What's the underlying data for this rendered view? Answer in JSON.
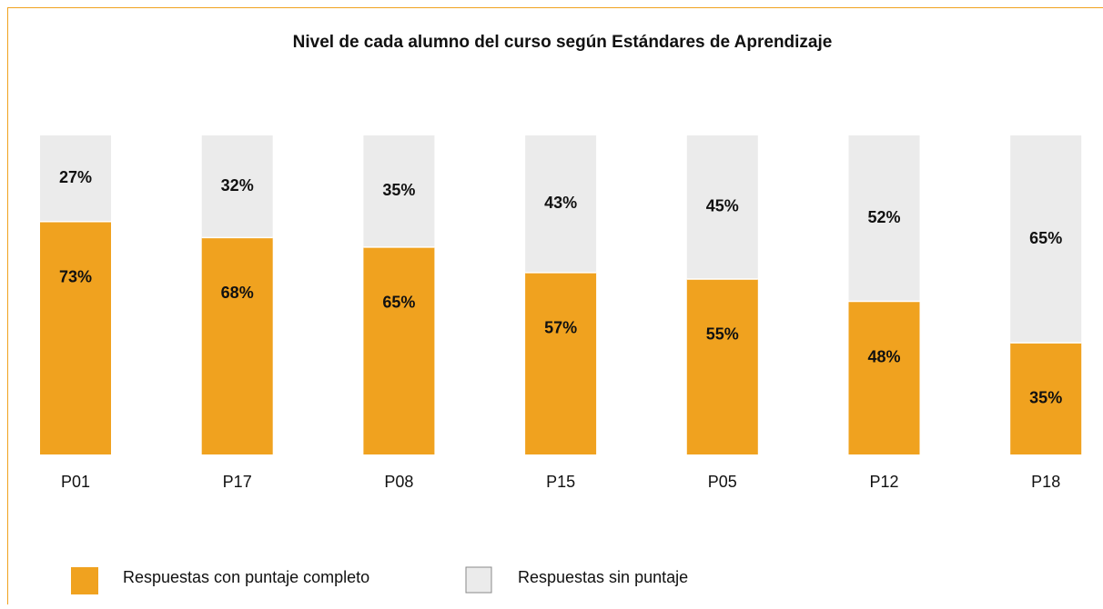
{
  "chart_data": {
    "type": "stacked_bar",
    "title": "Nivel de cada alumno del curso según Estándares de Aprendizaje",
    "categories": [
      "P01",
      "P17",
      "P08",
      "P15",
      "P05",
      "P12",
      "P18"
    ],
    "series": [
      {
        "name": "Respuestas con puntaje completo",
        "color": "#f0a21f",
        "values": [
          73,
          68,
          65,
          57,
          55,
          48,
          35
        ],
        "value_labels": [
          "73%",
          "68%",
          "65%",
          "57%",
          "55%",
          "48%",
          "35%"
        ]
      },
      {
        "name": "Respuestas sin puntaje",
        "color": "#ebebeb",
        "values": [
          27,
          32,
          35,
          43,
          45,
          52,
          65
        ],
        "value_labels": [
          "27%",
          "32%",
          "35%",
          "43%",
          "45%",
          "52%",
          "65%"
        ]
      }
    ],
    "ylim": [
      0,
      100
    ]
  }
}
